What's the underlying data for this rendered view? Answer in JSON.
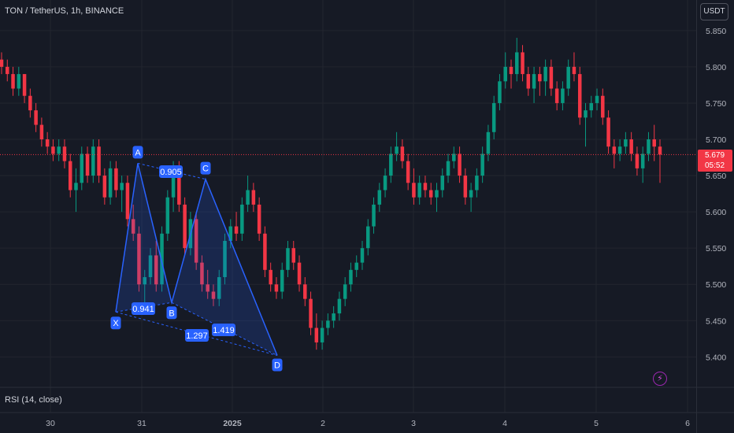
{
  "header": {
    "title": "TON / TetherUS, 1h, BINANCE"
  },
  "currency_button": "USDT",
  "last_price": {
    "value": "5.679",
    "countdown": "05:52"
  },
  "indicator": {
    "label": "RSI (14, close)"
  },
  "colors": {
    "background": "#161a25",
    "grid": "#22252f",
    "up": "#089981",
    "down": "#f23645",
    "pattern": "#2962ff",
    "pattern_label_bg": "#2962ff",
    "axis_text": "#b2b5be"
  },
  "icons": {
    "alert": "lightning-bolt-icon"
  },
  "chart_data": {
    "type": "candlestick",
    "title": "TON / TetherUS, 1h, BINANCE",
    "y_axis": {
      "ticks": [
        "5.850",
        "5.800",
        "5.750",
        "5.700",
        "5.650",
        "5.600",
        "5.550",
        "5.500",
        "5.450",
        "5.400"
      ],
      "ylim": [
        5.37,
        5.865
      ]
    },
    "x_axis": {
      "ticks": [
        "30",
        "31",
        "2025",
        "2",
        "3",
        "4",
        "5",
        "6"
      ]
    },
    "last_price": 5.679,
    "grid": true,
    "candles": [
      [
        5.81,
        5.82,
        5.79,
        5.8
      ],
      [
        5.8,
        5.81,
        5.78,
        5.79
      ],
      [
        5.79,
        5.8,
        5.76,
        5.77
      ],
      [
        5.77,
        5.8,
        5.76,
        5.79
      ],
      [
        5.79,
        5.79,
        5.75,
        5.76
      ],
      [
        5.76,
        5.77,
        5.73,
        5.74
      ],
      [
        5.74,
        5.75,
        5.71,
        5.72
      ],
      [
        5.72,
        5.73,
        5.69,
        5.7
      ],
      [
        5.7,
        5.71,
        5.68,
        5.69
      ],
      [
        5.69,
        5.7,
        5.67,
        5.68
      ],
      [
        5.68,
        5.7,
        5.67,
        5.69
      ],
      [
        5.69,
        5.7,
        5.66,
        5.67
      ],
      [
        5.67,
        5.68,
        5.62,
        5.63
      ],
      [
        5.63,
        5.66,
        5.6,
        5.64
      ],
      [
        5.64,
        5.69,
        5.63,
        5.68
      ],
      [
        5.68,
        5.69,
        5.64,
        5.65
      ],
      [
        5.65,
        5.7,
        5.64,
        5.69
      ],
      [
        5.69,
        5.7,
        5.64,
        5.65
      ],
      [
        5.65,
        5.66,
        5.61,
        5.62
      ],
      [
        5.62,
        5.67,
        5.61,
        5.66
      ],
      [
        5.66,
        5.67,
        5.62,
        5.63
      ],
      [
        5.63,
        5.65,
        5.6,
        5.64
      ],
      [
        5.64,
        5.65,
        5.58,
        5.59
      ],
      [
        5.59,
        5.61,
        5.56,
        5.57
      ],
      [
        5.57,
        5.58,
        5.49,
        5.5
      ],
      [
        5.5,
        5.52,
        5.47,
        5.51
      ],
      [
        5.51,
        5.55,
        5.5,
        5.54
      ],
      [
        5.54,
        5.56,
        5.49,
        5.5
      ],
      [
        5.5,
        5.58,
        5.49,
        5.57
      ],
      [
        5.57,
        5.63,
        5.56,
        5.62
      ],
      [
        5.62,
        5.67,
        5.6,
        5.66
      ],
      [
        5.66,
        5.67,
        5.6,
        5.61
      ],
      [
        5.61,
        5.62,
        5.54,
        5.55
      ],
      [
        5.55,
        5.6,
        5.54,
        5.59
      ],
      [
        5.59,
        5.6,
        5.52,
        5.53
      ],
      [
        5.53,
        5.54,
        5.49,
        5.5
      ],
      [
        5.5,
        5.52,
        5.48,
        5.49
      ],
      [
        5.49,
        5.5,
        5.47,
        5.48
      ],
      [
        5.48,
        5.52,
        5.47,
        5.51
      ],
      [
        5.51,
        5.57,
        5.5,
        5.56
      ],
      [
        5.56,
        5.59,
        5.55,
        5.58
      ],
      [
        5.58,
        5.6,
        5.56,
        5.57
      ],
      [
        5.57,
        5.62,
        5.56,
        5.61
      ],
      [
        5.61,
        5.65,
        5.6,
        5.63
      ],
      [
        5.63,
        5.64,
        5.6,
        5.61
      ],
      [
        5.61,
        5.62,
        5.56,
        5.57
      ],
      [
        5.57,
        5.58,
        5.51,
        5.52
      ],
      [
        5.52,
        5.53,
        5.49,
        5.5
      ],
      [
        5.5,
        5.51,
        5.48,
        5.49
      ],
      [
        5.49,
        5.53,
        5.48,
        5.52
      ],
      [
        5.52,
        5.56,
        5.51,
        5.55
      ],
      [
        5.55,
        5.56,
        5.52,
        5.53
      ],
      [
        5.53,
        5.54,
        5.49,
        5.5
      ],
      [
        5.5,
        5.51,
        5.47,
        5.48
      ],
      [
        5.48,
        5.49,
        5.43,
        5.44
      ],
      [
        5.44,
        5.46,
        5.41,
        5.42
      ],
      [
        5.42,
        5.45,
        5.41,
        5.44
      ],
      [
        5.44,
        5.46,
        5.43,
        5.45
      ],
      [
        5.45,
        5.47,
        5.44,
        5.46
      ],
      [
        5.46,
        5.49,
        5.45,
        5.48
      ],
      [
        5.48,
        5.51,
        5.47,
        5.5
      ],
      [
        5.5,
        5.53,
        5.49,
        5.52
      ],
      [
        5.52,
        5.54,
        5.51,
        5.53
      ],
      [
        5.53,
        5.56,
        5.52,
        5.55
      ],
      [
        5.55,
        5.59,
        5.54,
        5.58
      ],
      [
        5.58,
        5.62,
        5.57,
        5.61
      ],
      [
        5.61,
        5.64,
        5.6,
        5.63
      ],
      [
        5.63,
        5.66,
        5.62,
        5.65
      ],
      [
        5.65,
        5.69,
        5.64,
        5.68
      ],
      [
        5.68,
        5.71,
        5.67,
        5.69
      ],
      [
        5.69,
        5.7,
        5.66,
        5.67
      ],
      [
        5.67,
        5.68,
        5.63,
        5.64
      ],
      [
        5.64,
        5.66,
        5.61,
        5.62
      ],
      [
        5.62,
        5.65,
        5.61,
        5.64
      ],
      [
        5.64,
        5.65,
        5.62,
        5.63
      ],
      [
        5.63,
        5.64,
        5.61,
        5.62
      ],
      [
        5.62,
        5.64,
        5.6,
        5.63
      ],
      [
        5.63,
        5.66,
        5.62,
        5.65
      ],
      [
        5.65,
        5.68,
        5.64,
        5.67
      ],
      [
        5.67,
        5.69,
        5.66,
        5.68
      ],
      [
        5.68,
        5.69,
        5.64,
        5.65
      ],
      [
        5.65,
        5.66,
        5.61,
        5.62
      ],
      [
        5.62,
        5.64,
        5.6,
        5.63
      ],
      [
        5.63,
        5.66,
        5.62,
        5.65
      ],
      [
        5.65,
        5.69,
        5.64,
        5.68
      ],
      [
        5.68,
        5.72,
        5.67,
        5.71
      ],
      [
        5.71,
        5.76,
        5.7,
        5.75
      ],
      [
        5.75,
        5.79,
        5.74,
        5.78
      ],
      [
        5.78,
        5.82,
        5.77,
        5.8
      ],
      [
        5.8,
        5.81,
        5.77,
        5.79
      ],
      [
        5.79,
        5.84,
        5.78,
        5.82
      ],
      [
        5.82,
        5.83,
        5.78,
        5.79
      ],
      [
        5.79,
        5.8,
        5.76,
        5.77
      ],
      [
        5.77,
        5.8,
        5.75,
        5.79
      ],
      [
        5.79,
        5.8,
        5.76,
        5.78
      ],
      [
        5.78,
        5.81,
        5.76,
        5.8
      ],
      [
        5.8,
        5.81,
        5.76,
        5.77
      ],
      [
        5.77,
        5.78,
        5.74,
        5.75
      ],
      [
        5.75,
        5.78,
        5.74,
        5.77
      ],
      [
        5.77,
        5.81,
        5.76,
        5.8
      ],
      [
        5.8,
        5.82,
        5.78,
        5.79
      ],
      [
        5.79,
        5.8,
        5.72,
        5.73
      ],
      [
        5.73,
        5.75,
        5.69,
        5.74
      ],
      [
        5.74,
        5.76,
        5.73,
        5.75
      ],
      [
        5.75,
        5.77,
        5.74,
        5.76
      ],
      [
        5.76,
        5.77,
        5.72,
        5.73
      ],
      [
        5.73,
        5.74,
        5.68,
        5.69
      ],
      [
        5.69,
        5.7,
        5.66,
        5.68
      ],
      [
        5.68,
        5.7,
        5.67,
        5.69
      ],
      [
        5.69,
        5.71,
        5.68,
        5.7
      ],
      [
        5.7,
        5.71,
        5.67,
        5.68
      ],
      [
        5.68,
        5.69,
        5.65,
        5.66
      ],
      [
        5.66,
        5.69,
        5.64,
        5.68
      ],
      [
        5.68,
        5.71,
        5.67,
        5.7
      ],
      [
        5.7,
        5.72,
        5.67,
        5.69
      ],
      [
        5.69,
        5.7,
        5.64,
        5.679
      ]
    ],
    "pattern": {
      "type": "harmonic XABCD",
      "points": [
        {
          "label": "X",
          "price": 5.462
        },
        {
          "label": "A",
          "price": 5.667
        },
        {
          "label": "B",
          "price": 5.475
        },
        {
          "label": "C",
          "price": 5.645
        },
        {
          "label": "D",
          "price": 5.402
        }
      ],
      "ratios": [
        "0.905",
        "0.941",
        "1.297",
        "1.419"
      ]
    }
  }
}
